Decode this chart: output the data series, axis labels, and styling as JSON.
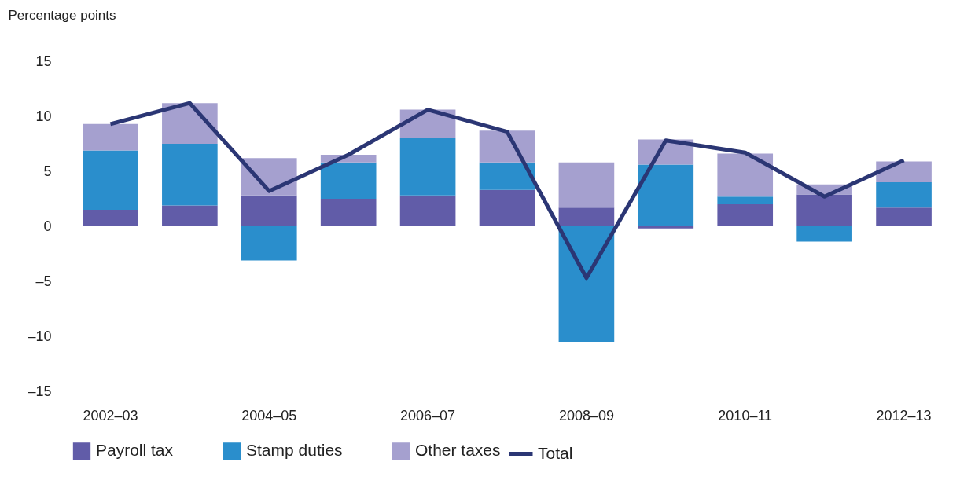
{
  "chart_data": {
    "type": "bar",
    "stacked": true,
    "ylabel": "Percentage points",
    "categories": [
      "2002–03",
      null,
      "2004–05",
      null,
      "2006–07",
      null,
      "2008–09",
      null,
      "2010–11",
      null,
      "2012–13"
    ],
    "series": [
      {
        "name": "Payroll tax",
        "color": "#615ca8",
        "values": [
          1.5,
          1.9,
          2.8,
          2.5,
          2.8,
          3.3,
          1.7,
          -0.2,
          2.0,
          2.9,
          1.7
        ]
      },
      {
        "name": "Stamp duties",
        "color": "#2a8ecc",
        "values": [
          5.4,
          5.6,
          -3.1,
          3.3,
          5.2,
          2.5,
          -10.5,
          5.6,
          0.7,
          -1.4,
          2.3
        ]
      },
      {
        "name": "Other taxes",
        "color": "#a5a0cf",
        "values": [
          2.4,
          3.7,
          3.4,
          0.7,
          2.6,
          2.9,
          4.1,
          2.3,
          3.9,
          0.9,
          1.9
        ]
      },
      {
        "name": "Total",
        "type": "line",
        "color": "#2b3674",
        "values": [
          9.3,
          11.2,
          3.2,
          6.5,
          10.6,
          8.6,
          -4.7,
          7.8,
          6.7,
          2.7,
          6.0
        ]
      }
    ],
    "ylim": [
      -15,
      15
    ],
    "yticks": [
      15,
      10,
      5,
      0,
      {
        "value": -5,
        "label": "–5"
      },
      {
        "value": -10,
        "label": "–10"
      },
      {
        "value": -15,
        "label": "–15"
      }
    ],
    "grid": false,
    "legend": "bottom"
  }
}
